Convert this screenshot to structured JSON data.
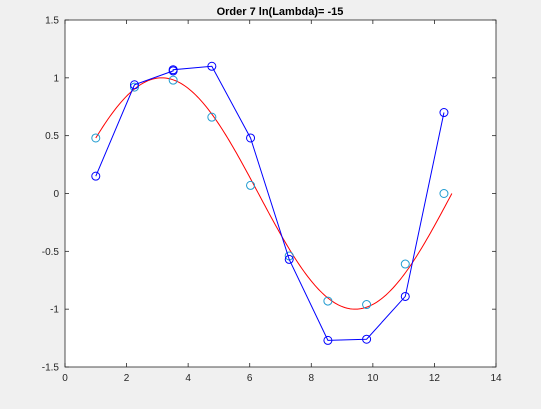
{
  "chart_data": {
    "type": "line",
    "title": "Order 7  ln(Lambda)= -15",
    "xlabel": "",
    "ylabel": "",
    "xlim": [
      0,
      14
    ],
    "ylim": [
      -1.5,
      1.5
    ],
    "xticks": [
      0,
      2,
      4,
      6,
      8,
      10,
      12,
      14
    ],
    "yticks": [
      -1.5,
      -1,
      -0.5,
      0,
      0.5,
      1,
      1.5
    ],
    "xtick_labels": [
      "0",
      "2",
      "4",
      "6",
      "8",
      "10",
      "12",
      "14"
    ],
    "ytick_labels": [
      "-1.5",
      "-1",
      "-0.5",
      "0",
      "0.5",
      "1",
      "1.5"
    ],
    "grid": false,
    "legend": "none",
    "series": [
      {
        "kind": "curve",
        "color": "#ff0000",
        "function": "sin(x/2)",
        "x_range": [
          1,
          12.5664
        ]
      },
      {
        "kind": "markers",
        "color": "#1f9bd0",
        "marker": "circle",
        "x": [
          1.0,
          2.2566,
          3.5133,
          4.7699,
          6.0265,
          7.2832,
          8.5398,
          9.7965,
          11.0531,
          12.3097
        ],
        "y": [
          0.48,
          0.92,
          0.98,
          0.66,
          0.07,
          -0.54,
          -0.93,
          -0.96,
          -0.61,
          0.0
        ]
      },
      {
        "kind": "line-markers",
        "color": "#0000ff",
        "marker": "circle",
        "x": [
          1.0,
          2.2566,
          3.5133,
          3.5133,
          4.7699,
          6.0265,
          7.2832,
          8.5398,
          9.7965,
          11.0531,
          12.3097
        ],
        "y": [
          0.15,
          0.94,
          1.06,
          1.07,
          1.1,
          0.48,
          -0.57,
          -1.27,
          -1.26,
          -0.89,
          0.7
        ]
      }
    ]
  }
}
